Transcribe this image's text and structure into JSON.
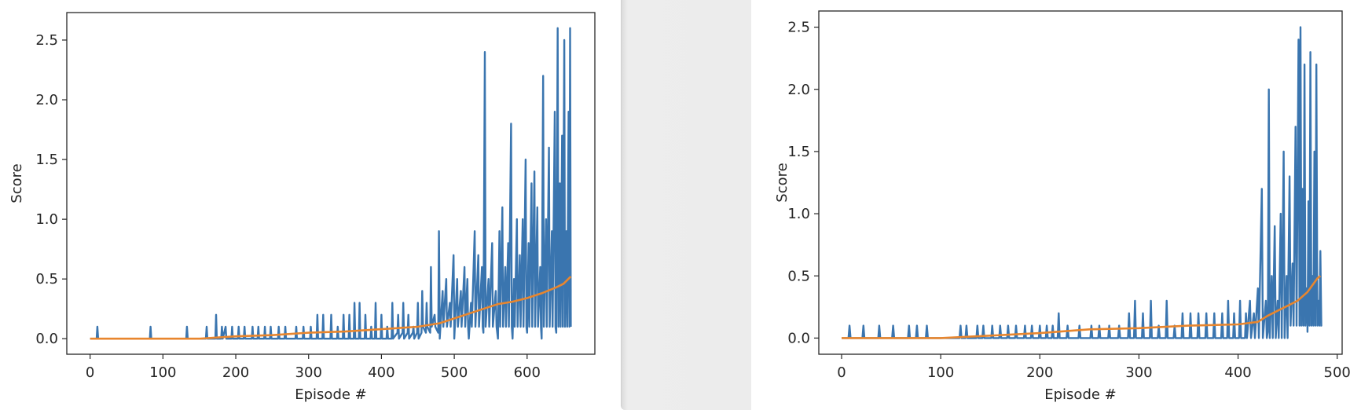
{
  "colors": {
    "score": "#3a75af",
    "average": "#e8862e",
    "axis": "#262626",
    "divider": "#ececec"
  },
  "chart_data": [
    {
      "type": "line",
      "xlabel": "Episode #",
      "ylabel": "Score",
      "xlim": [
        -32,
        693
      ],
      "ylim": [
        -0.13,
        2.73
      ],
      "xticks": [
        0,
        100,
        200,
        300,
        400,
        500,
        600
      ],
      "yticks": [
        0.0,
        0.5,
        1.0,
        1.5,
        2.0,
        2.5
      ],
      "xtick_labels": [
        "0",
        "100",
        "200",
        "300",
        "400",
        "500",
        "600"
      ],
      "ytick_labels": [
        "0.0",
        "0.5",
        "1.0",
        "1.5",
        "2.0",
        "2.5"
      ],
      "grid": false,
      "n_episodes": 660,
      "series": [
        {
          "key": "score",
          "spikes": [
            [
              10,
              0.1
            ],
            [
              83,
              0.1
            ],
            [
              133,
              0.1
            ],
            [
              160,
              0.1
            ],
            [
              173,
              0.2
            ],
            [
              181,
              0.1
            ],
            [
              186,
              0.1
            ],
            [
              195,
              0.1
            ],
            [
              204,
              0.1
            ],
            [
              212,
              0.1
            ],
            [
              223,
              0.1
            ],
            [
              231,
              0.1
            ],
            [
              240,
              0.1
            ],
            [
              248,
              0.1
            ],
            [
              259,
              0.1
            ],
            [
              268,
              0.1
            ],
            [
              283,
              0.1
            ],
            [
              293,
              0.1
            ],
            [
              303,
              0.1
            ],
            [
              312,
              0.2
            ],
            [
              320,
              0.2
            ],
            [
              331,
              0.2
            ],
            [
              340,
              0.1
            ],
            [
              348,
              0.2
            ],
            [
              356,
              0.2
            ],
            [
              363,
              0.3
            ],
            [
              370,
              0.3
            ],
            [
              378,
              0.2
            ],
            [
              386,
              0.1
            ],
            [
              392,
              0.3
            ],
            [
              400,
              0.2
            ],
            [
              408,
              0.1
            ],
            [
              415,
              0.3
            ],
            [
              423,
              0.2
            ],
            [
              430,
              0.3
            ],
            [
              437,
              0.2
            ],
            [
              444,
              0.1
            ],
            [
              450,
              0.3
            ],
            [
              456,
              0.4
            ],
            [
              462,
              0.3
            ],
            [
              468,
              0.6
            ],
            [
              473,
              0.2
            ],
            [
              479,
              0.9
            ],
            [
              484,
              0.4
            ],
            [
              489,
              0.5
            ],
            [
              494,
              0.3
            ],
            [
              499,
              0.7
            ],
            [
              504,
              0.5
            ],
            [
              509,
              0.4
            ],
            [
              514,
              0.6
            ],
            [
              518,
              0.5
            ],
            [
              523,
              0.3
            ],
            [
              528,
              0.9
            ],
            [
              533,
              0.7
            ],
            [
              538,
              0.6
            ],
            [
              542,
              2.4
            ],
            [
              547,
              0.5
            ],
            [
              552,
              0.8
            ],
            [
              557,
              0.4
            ],
            [
              562,
              0.9
            ],
            [
              566,
              1.1
            ],
            [
              570,
              0.6
            ],
            [
              574,
              0.8
            ],
            [
              578,
              1.8
            ],
            [
              582,
              0.5
            ],
            [
              586,
              1.0
            ],
            [
              590,
              0.7
            ],
            [
              594,
              1.0
            ],
            [
              598,
              1.5
            ],
            [
              602,
              0.8
            ],
            [
              606,
              1.3
            ],
            [
              610,
              1.4
            ],
            [
              614,
              1.1
            ],
            [
              618,
              0.6
            ],
            [
              622,
              2.2
            ],
            [
              626,
              1.0
            ],
            [
              630,
              1.6
            ],
            [
              634,
              0.9
            ],
            [
              638,
              1.9
            ],
            [
              642,
              2.6
            ],
            [
              645,
              1.3
            ],
            [
              648,
              1.7
            ],
            [
              651,
              2.5
            ],
            [
              654,
              0.9
            ],
            [
              657,
              1.9
            ],
            [
              659,
              2.6
            ]
          ],
          "lows": [
            [
              480,
              0.0
            ],
            [
              500,
              0.0
            ],
            [
              520,
              0.0
            ],
            [
              540,
              0.05
            ],
            [
              560,
              0.0
            ],
            [
              580,
              0.0
            ],
            [
              600,
              0.05
            ],
            [
              620,
              0.0
            ],
            [
              640,
              0.05
            ],
            [
              655,
              0.1
            ]
          ]
        },
        {
          "key": "average",
          "points": [
            [
              0,
              0.0
            ],
            [
              150,
              0.0
            ],
            [
              200,
              0.02
            ],
            [
              250,
              0.03
            ],
            [
              300,
              0.05
            ],
            [
              350,
              0.06
            ],
            [
              400,
              0.08
            ],
            [
              450,
              0.1
            ],
            [
              480,
              0.13
            ],
            [
              500,
              0.17
            ],
            [
              520,
              0.21
            ],
            [
              540,
              0.25
            ],
            [
              560,
              0.29
            ],
            [
              580,
              0.31
            ],
            [
              600,
              0.34
            ],
            [
              620,
              0.38
            ],
            [
              640,
              0.43
            ],
            [
              650,
              0.46
            ],
            [
              660,
              0.52
            ]
          ]
        }
      ]
    },
    {
      "type": "line",
      "xlabel": "Episode #",
      "ylabel": "Score",
      "xlim": [
        -23,
        505
      ],
      "ylim": [
        -0.13,
        2.63
      ],
      "xticks": [
        0,
        100,
        200,
        300,
        400,
        500
      ],
      "yticks": [
        0.0,
        0.5,
        1.0,
        1.5,
        2.0,
        2.5
      ],
      "xtick_labels": [
        "0",
        "100",
        "200",
        "300",
        "400",
        "500"
      ],
      "ytick_labels": [
        "0.0",
        "0.5",
        "1.0",
        "1.5",
        "2.0",
        "2.5"
      ],
      "grid": false,
      "n_episodes": 483,
      "series": [
        {
          "key": "score",
          "spikes": [
            [
              8,
              0.1
            ],
            [
              22,
              0.1
            ],
            [
              38,
              0.1
            ],
            [
              52,
              0.1
            ],
            [
              68,
              0.1
            ],
            [
              76,
              0.1
            ],
            [
              86,
              0.1
            ],
            [
              120,
              0.1
            ],
            [
              126,
              0.1
            ],
            [
              137,
              0.1
            ],
            [
              143,
              0.1
            ],
            [
              152,
              0.1
            ],
            [
              160,
              0.1
            ],
            [
              168,
              0.1
            ],
            [
              176,
              0.1
            ],
            [
              185,
              0.1
            ],
            [
              192,
              0.1
            ],
            [
              200,
              0.1
            ],
            [
              207,
              0.1
            ],
            [
              213,
              0.1
            ],
            [
              219,
              0.2
            ],
            [
              228,
              0.1
            ],
            [
              240,
              0.1
            ],
            [
              252,
              0.1
            ],
            [
              260,
              0.1
            ],
            [
              270,
              0.1
            ],
            [
              280,
              0.1
            ],
            [
              290,
              0.2
            ],
            [
              296,
              0.3
            ],
            [
              304,
              0.2
            ],
            [
              312,
              0.3
            ],
            [
              320,
              0.1
            ],
            [
              328,
              0.3
            ],
            [
              336,
              0.1
            ],
            [
              344,
              0.2
            ],
            [
              352,
              0.2
            ],
            [
              360,
              0.2
            ],
            [
              368,
              0.2
            ],
            [
              376,
              0.2
            ],
            [
              384,
              0.2
            ],
            [
              390,
              0.3
            ],
            [
              396,
              0.2
            ],
            [
              402,
              0.3
            ],
            [
              408,
              0.2
            ],
            [
              412,
              0.3
            ],
            [
              416,
              0.2
            ],
            [
              420,
              0.4
            ],
            [
              424,
              1.2
            ],
            [
              428,
              0.3
            ],
            [
              431,
              2.0
            ],
            [
              434,
              0.5
            ],
            [
              437,
              0.9
            ],
            [
              440,
              0.3
            ],
            [
              443,
              1.0
            ],
            [
              446,
              1.5
            ],
            [
              449,
              0.5
            ],
            [
              452,
              1.3
            ],
            [
              455,
              0.6
            ],
            [
              458,
              1.7
            ],
            [
              461,
              2.4
            ],
            [
              463,
              2.5
            ],
            [
              465,
              1.2
            ],
            [
              467,
              2.2
            ],
            [
              469,
              0.4
            ],
            [
              471,
              1.1
            ],
            [
              473,
              2.3
            ],
            [
              475,
              0.5
            ],
            [
              477,
              1.5
            ],
            [
              479,
              2.2
            ],
            [
              481,
              0.3
            ],
            [
              483,
              0.7
            ]
          ],
          "lows": [
            [
              430,
              0.05
            ],
            [
              450,
              0.0
            ],
            [
              470,
              0.05
            ],
            [
              480,
              0.1
            ]
          ]
        },
        {
          "key": "average",
          "points": [
            [
              0,
              0.0
            ],
            [
              100,
              0.0
            ],
            [
              150,
              0.02
            ],
            [
              200,
              0.04
            ],
            [
              250,
              0.07
            ],
            [
              300,
              0.08
            ],
            [
              350,
              0.1
            ],
            [
              400,
              0.11
            ],
            [
              420,
              0.13
            ],
            [
              430,
              0.18
            ],
            [
              440,
              0.22
            ],
            [
              450,
              0.26
            ],
            [
              460,
              0.3
            ],
            [
              470,
              0.37
            ],
            [
              480,
              0.48
            ],
            [
              483,
              0.5
            ]
          ]
        }
      ]
    }
  ]
}
